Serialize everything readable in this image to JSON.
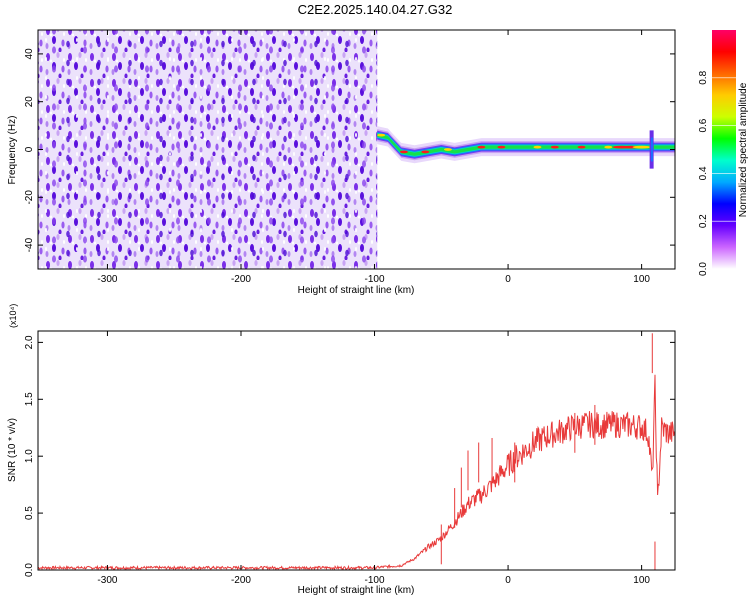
{
  "title": "C2E2.2025.140.04.27.G32",
  "chart_data": [
    {
      "type": "heatmap",
      "xlabel": "Height of straight line (km)",
      "ylabel": "Frequency (Hz)",
      "xlim": [
        -352,
        125
      ],
      "ylim": [
        -50,
        50
      ],
      "xticks": [
        -300,
        -200,
        -100,
        0,
        100
      ],
      "xtick_labels": [
        "-300",
        "-200",
        "-100",
        "0",
        "100"
      ],
      "yticks": [
        -40,
        -20,
        0,
        20,
        40
      ],
      "ytick_labels": [
        "-40",
        "-20",
        "0",
        "20",
        "40"
      ],
      "noise_region_x": [
        -352,
        -98
      ],
      "signal_track": [
        {
          "x": -98,
          "y": 6
        },
        {
          "x": -90,
          "y": 5
        },
        {
          "x": -85,
          "y": 2
        },
        {
          "x": -80,
          "y": -1
        },
        {
          "x": -70,
          "y": -2
        },
        {
          "x": -60,
          "y": -1
        },
        {
          "x": -50,
          "y": 0
        },
        {
          "x": -40,
          "y": -1
        },
        {
          "x": -30,
          "y": 0
        },
        {
          "x": -20,
          "y": 1
        },
        {
          "x": -10,
          "y": 1
        },
        {
          "x": 0,
          "y": 1
        },
        {
          "x": 20,
          "y": 1
        },
        {
          "x": 40,
          "y": 1
        },
        {
          "x": 60,
          "y": 1
        },
        {
          "x": 80,
          "y": 1
        },
        {
          "x": 100,
          "y": 1
        },
        {
          "x": 110,
          "y": 1
        },
        {
          "x": 125,
          "y": 1
        }
      ],
      "colorbar": {
        "label": "Normalized spectral amplitude",
        "range": [
          0,
          1
        ],
        "ticks": [
          0.0,
          0.2,
          0.4,
          0.6,
          0.8
        ],
        "tick_labels": [
          "0.0",
          "0.2",
          "0.4",
          "0.6",
          "0.8"
        ],
        "colormap": [
          "#ffffff",
          "#cc66ff",
          "#6600ff",
          "#0000ff",
          "#00aaff",
          "#00ffcc",
          "#00ff00",
          "#ccff00",
          "#ffcc00",
          "#ff6600",
          "#ff0000",
          "#ff0066"
        ]
      }
    },
    {
      "type": "line",
      "xlabel": "Height of straight line (km)",
      "ylabel": "SNR (10 * v/v)",
      "scale_label": "(x10⁴)",
      "xlim": [
        -352,
        125
      ],
      "ylim": [
        0,
        2.1
      ],
      "xticks": [
        -300,
        -200,
        -100,
        0,
        100
      ],
      "xtick_labels": [
        "-300",
        "-200",
        "-100",
        "0",
        "100"
      ],
      "yticks": [
        0,
        0.5,
        1.0,
        1.5,
        2.0
      ],
      "ytick_labels": [
        "0.0",
        "0.5",
        "1.0",
        "1.5",
        "2.0"
      ],
      "color": "#e83a3a",
      "series": [
        {
          "name": "SNR",
          "x": [
            -352,
            -300,
            -250,
            -200,
            -150,
            -100,
            -80,
            -70,
            -60,
            -50,
            -45,
            -40,
            -35,
            -30,
            -25,
            -20,
            -15,
            -10,
            -5,
            0,
            5,
            10,
            20,
            30,
            40,
            50,
            60,
            70,
            80,
            90,
            100,
            105,
            108,
            110,
            112,
            115,
            120,
            125
          ],
          "y": [
            0.02,
            0.02,
            0.02,
            0.02,
            0.02,
            0.02,
            0.04,
            0.1,
            0.2,
            0.28,
            0.35,
            0.42,
            0.5,
            0.58,
            0.62,
            0.66,
            0.72,
            0.78,
            0.85,
            0.92,
            0.98,
            1.03,
            1.12,
            1.18,
            1.22,
            1.26,
            1.28,
            1.27,
            1.28,
            1.27,
            1.26,
            1.2,
            0.8,
            1.6,
            0.6,
            1.25,
            1.2,
            1.2
          ],
          "spikes": [
            {
              "x": -50,
              "y": 0.4
            },
            {
              "x": -40,
              "y": 0.72
            },
            {
              "x": -35,
              "y": 0.9
            },
            {
              "x": -30,
              "y": 1.05
            },
            {
              "x": -22,
              "y": 1.12
            },
            {
              "x": -12,
              "y": 1.16
            },
            {
              "x": 5,
              "y": 1.12
            },
            {
              "x": 50,
              "y": 1.38
            },
            {
              "x": 65,
              "y": 1.45
            },
            {
              "x": 108,
              "y": 2.08
            },
            {
              "x": 110,
              "y": 0.25
            }
          ]
        }
      ]
    }
  ]
}
